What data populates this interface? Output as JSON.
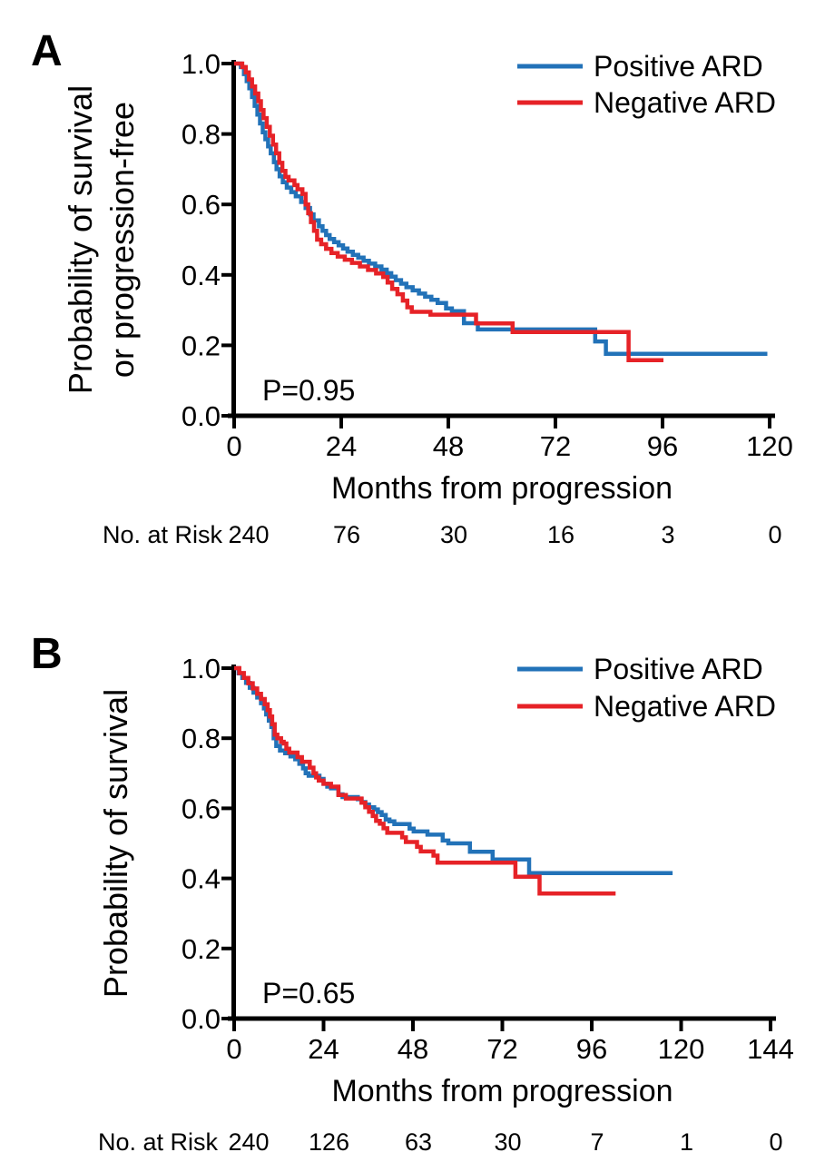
{
  "figure": {
    "background": "#ffffff",
    "panel_label_color": "#1a74a8",
    "axis_color": "#000000"
  },
  "chart_data": [
    {
      "type": "line",
      "subtype": "kaplan-meier-step",
      "panel_label": "A",
      "title": "",
      "xlabel": "Months from progression",
      "ylabel_lines": [
        "Probability of survival",
        "or progression-free"
      ],
      "p_value": "P=0.95",
      "xlim": [
        0,
        120
      ],
      "ylim": [
        0,
        1
      ],
      "x_ticks": [
        0,
        24,
        48,
        72,
        96,
        120
      ],
      "y_ticks": [
        "1.0",
        "0.8",
        "0.6",
        "0.4",
        "0.2",
        "0.0"
      ],
      "grid": false,
      "legend_position": "top-right",
      "risk": {
        "label": "No. at Risk",
        "values": [
          "240",
          "76",
          "30",
          "16",
          "3",
          "0"
        ]
      },
      "series": [
        {
          "name": "Positive ARD",
          "color": "#2272b8",
          "points": [
            [
              0,
              1
            ],
            [
              1.5,
              0.99
            ],
            [
              2.2,
              0.97
            ],
            [
              2.8,
              0.95
            ],
            [
              3.4,
              0.93
            ],
            [
              4,
              0.905
            ],
            [
              4.6,
              0.88
            ],
            [
              5.2,
              0.855
            ],
            [
              5.8,
              0.83
            ],
            [
              6.4,
              0.805
            ],
            [
              7,
              0.785
            ],
            [
              7.6,
              0.765
            ],
            [
              8.2,
              0.745
            ],
            [
              8.9,
              0.72
            ],
            [
              9.5,
              0.7
            ],
            [
              10.2,
              0.68
            ],
            [
              10.9,
              0.663
            ],
            [
              11.8,
              0.648
            ],
            [
              12.8,
              0.635
            ],
            [
              13.8,
              0.623
            ],
            [
              15,
              0.607
            ],
            [
              16,
              0.59
            ],
            [
              17,
              0.572
            ],
            [
              17.8,
              0.555
            ],
            [
              19,
              0.538
            ],
            [
              19.8,
              0.525
            ],
            [
              20.6,
              0.513
            ],
            [
              21.4,
              0.502
            ],
            [
              22.4,
              0.493
            ],
            [
              23.4,
              0.484
            ],
            [
              24.4,
              0.475
            ],
            [
              25.4,
              0.466
            ],
            [
              26.6,
              0.457
            ],
            [
              27.8,
              0.449
            ],
            [
              29,
              0.44
            ],
            [
              30.2,
              0.432
            ],
            [
              31.6,
              0.424
            ],
            [
              33,
              0.415
            ],
            [
              34.2,
              0.405
            ],
            [
              35.2,
              0.395
            ],
            [
              36.2,
              0.385
            ],
            [
              37.4,
              0.375
            ],
            [
              38.6,
              0.365
            ],
            [
              40,
              0.356
            ],
            [
              41.4,
              0.347
            ],
            [
              42.8,
              0.338
            ],
            [
              44.2,
              0.329
            ],
            [
              45.6,
              0.32
            ],
            [
              47.5,
              0.305
            ],
            [
              48.8,
              0.297
            ],
            [
              51.5,
              0.263
            ],
            [
              54.6,
              0.245
            ],
            [
              80.9,
              0.211
            ],
            [
              83.3,
              0.176
            ],
            [
              119.5,
              0.176
            ]
          ]
        },
        {
          "name": "Negative ARD",
          "color": "#e62227",
          "points": [
            [
              0,
              1
            ],
            [
              1.8,
              0.99
            ],
            [
              2.6,
              0.975
            ],
            [
              3.3,
              0.955
            ],
            [
              4,
              0.935
            ],
            [
              4.7,
              0.915
            ],
            [
              5.4,
              0.893
            ],
            [
              6,
              0.868
            ],
            [
              6.6,
              0.845
            ],
            [
              7.3,
              0.82
            ],
            [
              8,
              0.795
            ],
            [
              8.7,
              0.77
            ],
            [
              9.4,
              0.745
            ],
            [
              10.1,
              0.718
            ],
            [
              10.8,
              0.695
            ],
            [
              11.5,
              0.678
            ],
            [
              12.2,
              0.668
            ],
            [
              13.5,
              0.655
            ],
            [
              14.2,
              0.643
            ],
            [
              15.3,
              0.63
            ],
            [
              16,
              0.6
            ],
            [
              16.6,
              0.575
            ],
            [
              17.2,
              0.55
            ],
            [
              17.9,
              0.525
            ],
            [
              18.6,
              0.5
            ],
            [
              19.5,
              0.487
            ],
            [
              20.6,
              0.474
            ],
            [
              21.8,
              0.462
            ],
            [
              23.2,
              0.452
            ],
            [
              24.8,
              0.443
            ],
            [
              26.4,
              0.434
            ],
            [
              28.2,
              0.424
            ],
            [
              30,
              0.414
            ],
            [
              31.8,
              0.404
            ],
            [
              33.4,
              0.394
            ],
            [
              34.4,
              0.378
            ],
            [
              35.4,
              0.36
            ],
            [
              36.6,
              0.345
            ],
            [
              37.8,
              0.327
            ],
            [
              38.8,
              0.308
            ],
            [
              39.8,
              0.295
            ],
            [
              44,
              0.287
            ],
            [
              54.2,
              0.262
            ],
            [
              62.4,
              0.238
            ],
            [
              88.4,
              0.158
            ],
            [
              96.2,
              0.158
            ]
          ]
        }
      ]
    },
    {
      "type": "line",
      "subtype": "kaplan-meier-step",
      "panel_label": "B",
      "title": "",
      "xlabel": "Months from progression",
      "ylabel_lines": [
        "Probability of survival"
      ],
      "p_value": "P=0.65",
      "xlim": [
        0,
        144
      ],
      "ylim": [
        0,
        1
      ],
      "x_ticks": [
        0,
        24,
        48,
        72,
        96,
        120,
        144
      ],
      "y_ticks": [
        "1.0",
        "0.8",
        "0.6",
        "0.4",
        "0.2",
        "0.0"
      ],
      "grid": false,
      "legend_position": "top-right",
      "risk": {
        "label": "No. at Risk",
        "values": [
          "240",
          "126",
          "63",
          "30",
          "7",
          "1",
          "0"
        ]
      },
      "series": [
        {
          "name": "Positive ARD",
          "color": "#2272b8",
          "points": [
            [
              0,
              1
            ],
            [
              1.2,
              0.985
            ],
            [
              2.2,
              0.972
            ],
            [
              3.2,
              0.958
            ],
            [
              4.2,
              0.944
            ],
            [
              5.2,
              0.93
            ],
            [
              6.2,
              0.916
            ],
            [
              7.2,
              0.9
            ],
            [
              8,
              0.885
            ],
            [
              8.6,
              0.868
            ],
            [
              9.3,
              0.85
            ],
            [
              10,
              0.832
            ],
            [
              10.6,
              0.8
            ],
            [
              11.3,
              0.778
            ],
            [
              12.3,
              0.765
            ],
            [
              13.7,
              0.757
            ],
            [
              15.1,
              0.748
            ],
            [
              16.4,
              0.74
            ],
            [
              17.5,
              0.727
            ],
            [
              18.5,
              0.714
            ],
            [
              19.2,
              0.7
            ],
            [
              20,
              0.693
            ],
            [
              22.9,
              0.684
            ],
            [
              24,
              0.67
            ],
            [
              25,
              0.662
            ],
            [
              26,
              0.657
            ],
            [
              28,
              0.64
            ],
            [
              29.1,
              0.632
            ],
            [
              33.2,
              0.626
            ],
            [
              34.2,
              0.618
            ],
            [
              35.2,
              0.611
            ],
            [
              36.2,
              0.603
            ],
            [
              37.6,
              0.597
            ],
            [
              38.6,
              0.589
            ],
            [
              39.6,
              0.581
            ],
            [
              40.7,
              0.568
            ],
            [
              41.7,
              0.563
            ],
            [
              43,
              0.555
            ],
            [
              47.1,
              0.542
            ],
            [
              48.2,
              0.534
            ],
            [
              51.9,
              0.525
            ],
            [
              56,
              0.508
            ],
            [
              57.5,
              0.5
            ],
            [
              63.3,
              0.476
            ],
            [
              69.4,
              0.454
            ],
            [
              79.2,
              0.415
            ],
            [
              117.7,
              0.415
            ]
          ]
        },
        {
          "name": "Negative ARD",
          "color": "#e62227",
          "points": [
            [
              0,
              1
            ],
            [
              1.4,
              0.986
            ],
            [
              2.6,
              0.972
            ],
            [
              3.8,
              0.957
            ],
            [
              5,
              0.942
            ],
            [
              6.2,
              0.927
            ],
            [
              7.2,
              0.912
            ],
            [
              8.2,
              0.897
            ],
            [
              9,
              0.88
            ],
            [
              9.6,
              0.862
            ],
            [
              10.2,
              0.84
            ],
            [
              10.9,
              0.81
            ],
            [
              11.6,
              0.8
            ],
            [
              12.6,
              0.79
            ],
            [
              13.3,
              0.785
            ],
            [
              14,
              0.77
            ],
            [
              14.8,
              0.759
            ],
            [
              17,
              0.746
            ],
            [
              18.2,
              0.733
            ],
            [
              20.3,
              0.716
            ],
            [
              21.3,
              0.7
            ],
            [
              22,
              0.688
            ],
            [
              22.7,
              0.679
            ],
            [
              24,
              0.67
            ],
            [
              26,
              0.662
            ],
            [
              28,
              0.638
            ],
            [
              30,
              0.628
            ],
            [
              34.2,
              0.616
            ],
            [
              35.2,
              0.603
            ],
            [
              36.2,
              0.59
            ],
            [
              37.2,
              0.578
            ],
            [
              38.1,
              0.564
            ],
            [
              39.1,
              0.556
            ],
            [
              40.1,
              0.543
            ],
            [
              41.1,
              0.53
            ],
            [
              45.1,
              0.517
            ],
            [
              46.1,
              0.504
            ],
            [
              49.1,
              0.49
            ],
            [
              50.1,
              0.477
            ],
            [
              53.5,
              0.465
            ],
            [
              54.6,
              0.445
            ],
            [
              75.5,
              0.405
            ],
            [
              82,
              0.357
            ],
            [
              102.4,
              0.357
            ]
          ]
        }
      ]
    }
  ]
}
